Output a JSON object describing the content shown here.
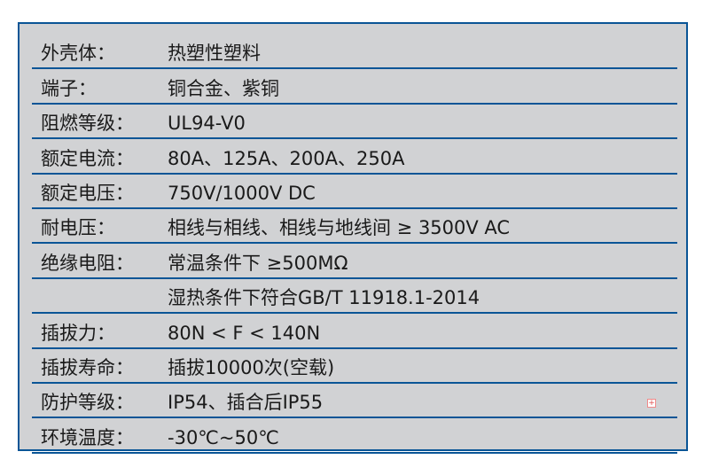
{
  "specs": [
    {
      "label": "外壳体：",
      "value": "热塑性塑料"
    },
    {
      "label": "端子：",
      "value": "铜合金、紫铜"
    },
    {
      "label": "阻燃等级：",
      "value": "UL94-V0"
    },
    {
      "label": "额定电流：",
      "value": "80A、125A、200A、250A"
    },
    {
      "label": "额定电压：",
      "value": "750V/1000V DC"
    },
    {
      "label": "耐电压：",
      "value": "相线与相线、相线与地线间 ≥ 3500V AC"
    },
    {
      "label": "绝缘电阻：",
      "value": "常温条件下 ≥500MΩ"
    },
    {
      "label": "",
      "value": "湿热条件下符合GB/T 11918.1-2014"
    },
    {
      "label": "插拔力：",
      "value": "80N < F < 140N"
    },
    {
      "label": "插拔寿命：",
      "value": "插拔10000次(空载)"
    },
    {
      "label": "防护等级：",
      "value": "IP54、插合后IP55"
    },
    {
      "label": "环境温度：",
      "value": "-30℃~50℃"
    }
  ],
  "colors": {
    "border": "#0a5596",
    "background": "#d1d2d4"
  },
  "marker_icon": "plus-square-icon"
}
